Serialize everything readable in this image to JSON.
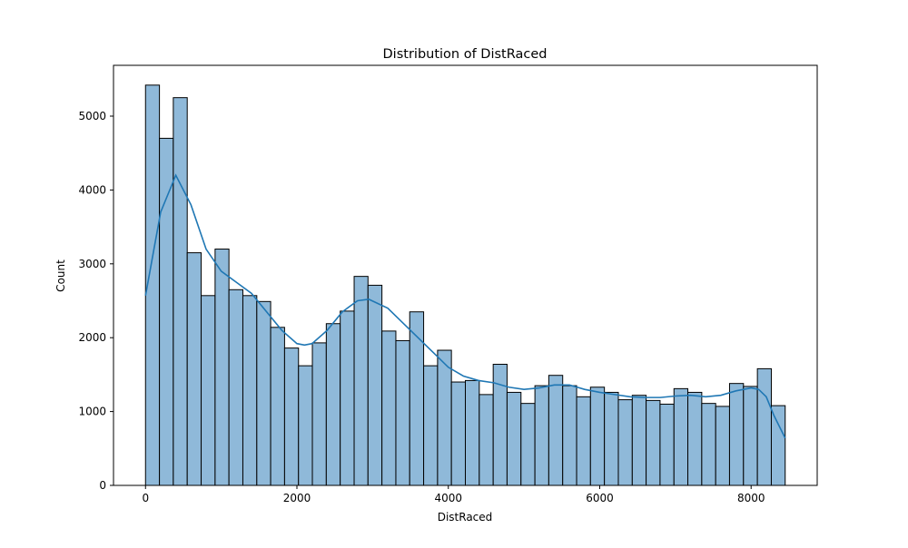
{
  "chart_data": {
    "type": "histogram",
    "title": "Distribution of DistRaced",
    "xlabel": "DistRaced",
    "ylabel": "Count",
    "bins": [
      0,
      184,
      367,
      551,
      735,
      919,
      1102,
      1286,
      1470,
      1653,
      1837,
      2021,
      2204,
      2388,
      2572,
      2756,
      2939,
      3123,
      3307,
      3490,
      3674,
      3858,
      4041,
      4225,
      4409,
      4593,
      4776,
      4960,
      5144,
      5327,
      5511,
      5695,
      5878,
      6062,
      6246,
      6430,
      6613,
      6797,
      6981,
      7164,
      7348,
      7532,
      7715,
      7899,
      8083,
      8267,
      8450
    ],
    "counts": [
      5420,
      4700,
      5250,
      3150,
      2570,
      3200,
      2650,
      2570,
      2490,
      2140,
      1860,
      1620,
      1930,
      2190,
      2360,
      2830,
      2710,
      2090,
      1960,
      2350,
      1620,
      1830,
      1400,
      1420,
      1230,
      1640,
      1260,
      1110,
      1350,
      1490,
      1350,
      1200,
      1330,
      1260,
      1160,
      1220,
      1150,
      1100,
      1310,
      1260,
      1110,
      1070,
      1380,
      1340,
      1580,
      1080
    ],
    "color": "#8fb9d9",
    "edgecolor": "#000000",
    "kde": {
      "color": "#1f77b4",
      "x": [
        0,
        200,
        400,
        600,
        800,
        1000,
        1200,
        1400,
        1600,
        1800,
        2000,
        2100,
        2200,
        2400,
        2600,
        2800,
        2950,
        3200,
        3400,
        3600,
        3800,
        4000,
        4200,
        4400,
        4600,
        4800,
        5000,
        5200,
        5400,
        5600,
        5800,
        6000,
        6200,
        6400,
        6600,
        6800,
        7000,
        7200,
        7400,
        7600,
        7800,
        8000,
        8100,
        8200,
        8300,
        8450
      ],
      "values": [
        2570,
        3700,
        4200,
        3800,
        3200,
        2900,
        2750,
        2600,
        2350,
        2100,
        1920,
        1900,
        1920,
        2100,
        2350,
        2500,
        2520,
        2400,
        2200,
        2000,
        1800,
        1600,
        1480,
        1420,
        1390,
        1330,
        1300,
        1320,
        1360,
        1360,
        1300,
        1260,
        1230,
        1200,
        1190,
        1190,
        1210,
        1220,
        1200,
        1220,
        1280,
        1320,
        1300,
        1200,
        950,
        640
      ]
    },
    "xlim": [
      -423,
      8873
    ],
    "ylim": [
      0,
      5688
    ],
    "xticks": [
      0,
      2000,
      4000,
      6000,
      8000
    ],
    "yticks": [
      0,
      1000,
      2000,
      3000,
      4000,
      5000
    ]
  }
}
